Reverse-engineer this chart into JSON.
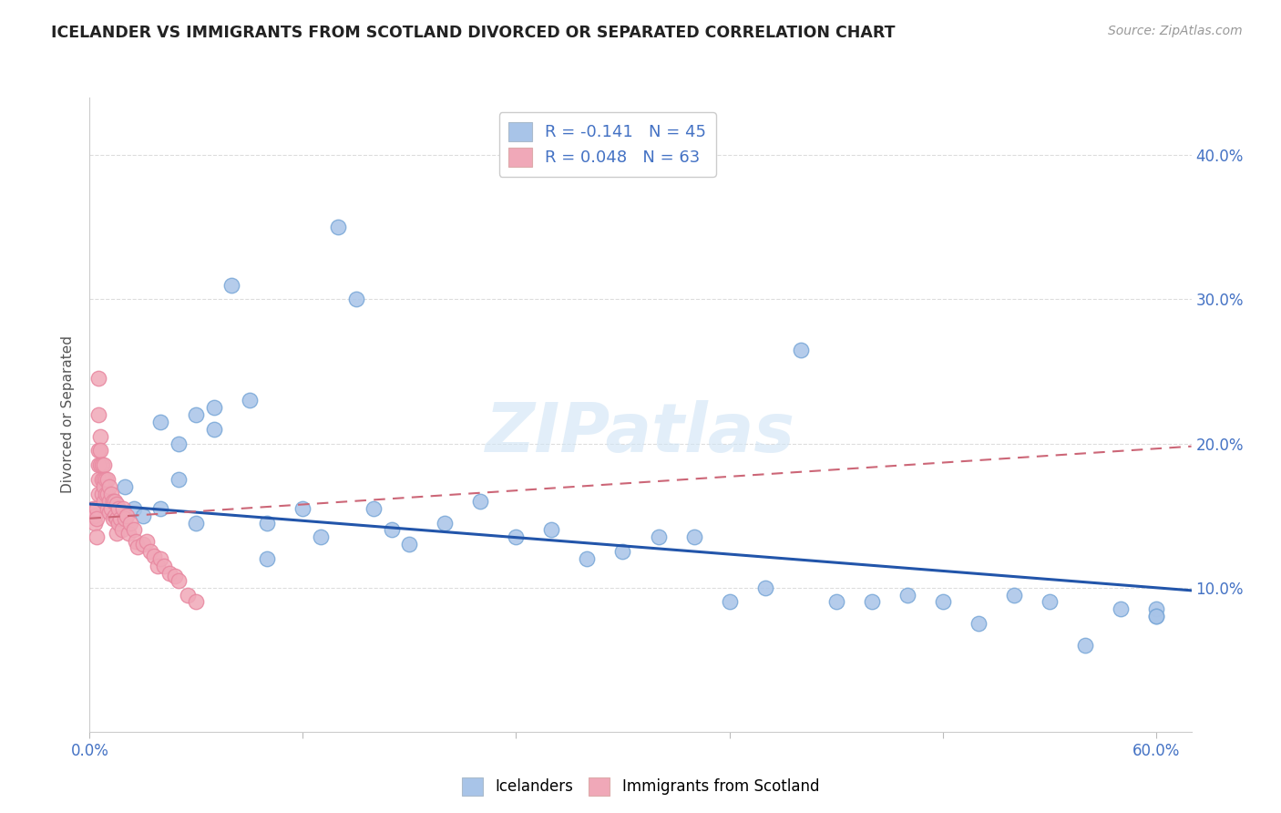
{
  "title": "ICELANDER VS IMMIGRANTS FROM SCOTLAND DIVORCED OR SEPARATED CORRELATION CHART",
  "source": "Source: ZipAtlas.com",
  "ylabel": "Divorced or Separated",
  "xlim": [
    0.0,
    0.62
  ],
  "ylim": [
    0.0,
    0.44
  ],
  "xticks": [
    0.0,
    0.12,
    0.24,
    0.36,
    0.48,
    0.6
  ],
  "xtick_labels": [
    "0.0%",
    "",
    "",
    "",
    "",
    "60.0%"
  ],
  "yticks_right": [
    0.1,
    0.2,
    0.3,
    0.4
  ],
  "ytick_labels_right": [
    "10.0%",
    "20.0%",
    "30.0%",
    "40.0%"
  ],
  "blue_color": "#A8C4E8",
  "pink_color": "#F0A8B8",
  "blue_edge_color": "#7AA8D8",
  "pink_edge_color": "#E888A0",
  "blue_line_color": "#2255AA",
  "pink_line_color": "#CC6677",
  "legend_R1": "R = -0.141",
  "legend_N1": "N = 45",
  "legend_R2": "R = 0.048",
  "legend_N2": "N = 63",
  "watermark": "ZIPatlas",
  "blue_scatter_x": [
    0.02,
    0.025,
    0.03,
    0.04,
    0.04,
    0.05,
    0.05,
    0.06,
    0.06,
    0.07,
    0.07,
    0.08,
    0.09,
    0.1,
    0.1,
    0.12,
    0.13,
    0.14,
    0.15,
    0.16,
    0.17,
    0.18,
    0.2,
    0.22,
    0.24,
    0.26,
    0.28,
    0.3,
    0.32,
    0.34,
    0.36,
    0.38,
    0.4,
    0.42,
    0.44,
    0.46,
    0.48,
    0.5,
    0.52,
    0.54,
    0.56,
    0.58,
    0.6,
    0.6,
    0.6
  ],
  "blue_scatter_y": [
    0.17,
    0.155,
    0.15,
    0.155,
    0.215,
    0.175,
    0.2,
    0.145,
    0.22,
    0.21,
    0.225,
    0.31,
    0.23,
    0.145,
    0.12,
    0.155,
    0.135,
    0.35,
    0.3,
    0.155,
    0.14,
    0.13,
    0.145,
    0.16,
    0.135,
    0.14,
    0.12,
    0.125,
    0.135,
    0.135,
    0.09,
    0.1,
    0.265,
    0.09,
    0.09,
    0.095,
    0.09,
    0.075,
    0.095,
    0.09,
    0.06,
    0.085,
    0.085,
    0.08,
    0.08
  ],
  "pink_scatter_x": [
    0.002,
    0.003,
    0.003,
    0.004,
    0.004,
    0.004,
    0.005,
    0.005,
    0.005,
    0.005,
    0.005,
    0.005,
    0.006,
    0.006,
    0.006,
    0.007,
    0.007,
    0.007,
    0.008,
    0.008,
    0.008,
    0.008,
    0.009,
    0.009,
    0.01,
    0.01,
    0.01,
    0.011,
    0.011,
    0.011,
    0.012,
    0.012,
    0.013,
    0.013,
    0.014,
    0.014,
    0.015,
    0.015,
    0.015,
    0.016,
    0.016,
    0.017,
    0.018,
    0.019,
    0.02,
    0.021,
    0.022,
    0.023,
    0.025,
    0.026,
    0.027,
    0.03,
    0.032,
    0.034,
    0.036,
    0.038,
    0.04,
    0.042,
    0.045,
    0.048,
    0.05,
    0.055,
    0.06
  ],
  "pink_scatter_y": [
    0.155,
    0.15,
    0.145,
    0.155,
    0.148,
    0.135,
    0.245,
    0.22,
    0.195,
    0.185,
    0.175,
    0.165,
    0.205,
    0.195,
    0.185,
    0.185,
    0.175,
    0.165,
    0.185,
    0.175,
    0.17,
    0.16,
    0.175,
    0.165,
    0.175,
    0.165,
    0.155,
    0.17,
    0.16,
    0.152,
    0.165,
    0.155,
    0.16,
    0.148,
    0.16,
    0.15,
    0.158,
    0.148,
    0.138,
    0.155,
    0.145,
    0.148,
    0.14,
    0.155,
    0.148,
    0.15,
    0.138,
    0.145,
    0.14,
    0.132,
    0.128,
    0.13,
    0.132,
    0.125,
    0.122,
    0.115,
    0.12,
    0.115,
    0.11,
    0.108,
    0.105,
    0.095,
    0.09
  ],
  "blue_trendline_x": [
    0.0,
    0.62
  ],
  "blue_trendline_y": [
    0.158,
    0.098
  ],
  "pink_trendline_x": [
    0.0,
    0.62
  ],
  "pink_trendline_y": [
    0.148,
    0.198
  ],
  "background_color": "#FFFFFF",
  "grid_color": "#DDDDDD",
  "title_color": "#222222",
  "source_color": "#999999",
  "axis_color": "#4472C4",
  "legend_text_color": "#4472C4"
}
